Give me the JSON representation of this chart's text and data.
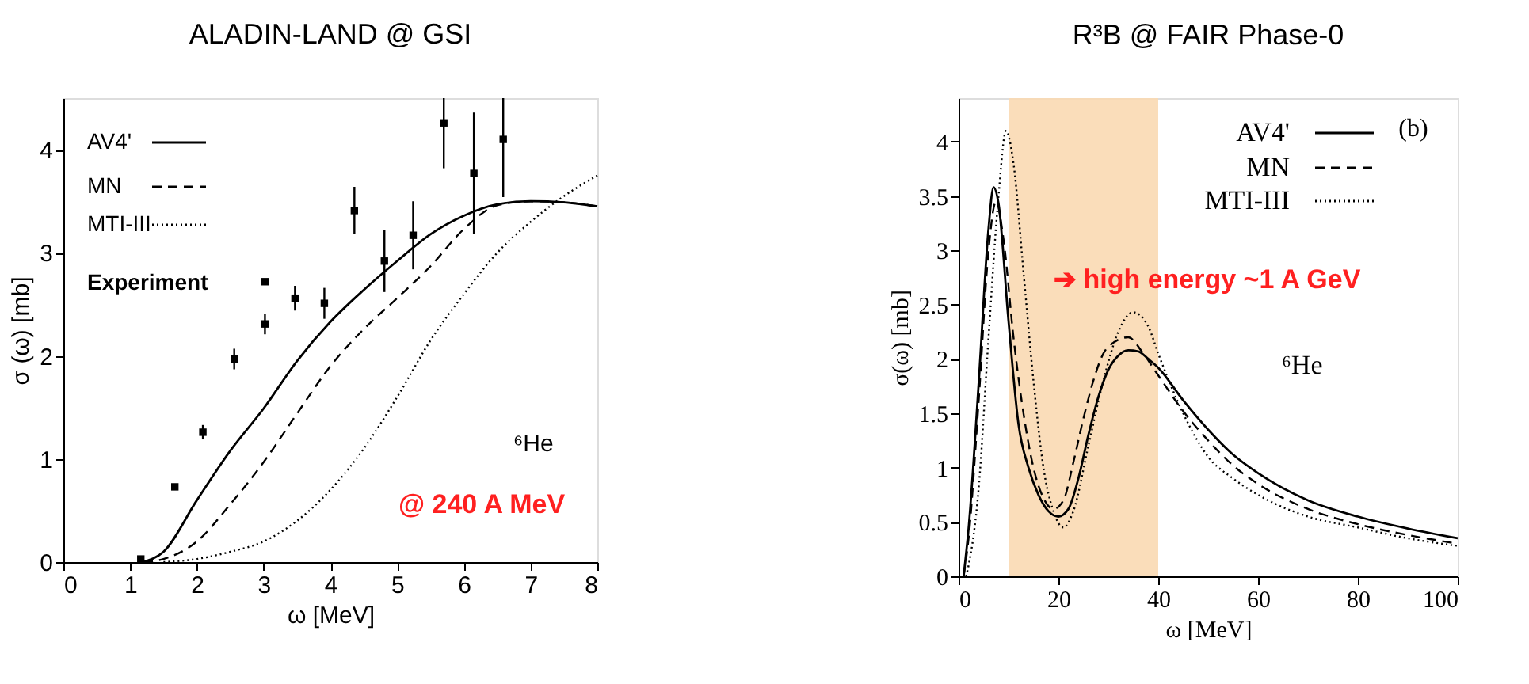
{
  "chart_data": [
    {
      "type": "line",
      "title": "ALADIN-LAND @ GSI",
      "xlabel": "ω  [MeV]",
      "ylabel": "σ (ω) [mb]",
      "xlim": [
        0,
        8
      ],
      "ylim": [
        0,
        4.5
      ],
      "xticks": [
        0,
        1,
        2,
        3,
        4,
        5,
        6,
        7,
        8
      ],
      "yticks": [
        0,
        1,
        2,
        3,
        4
      ],
      "legend": "top left",
      "grid": false,
      "annotations": [
        "⁶He",
        "@ 240 A MeV"
      ],
      "series": [
        {
          "name": "AV4'",
          "color": "#000000",
          "line_style": "solid",
          "x": [
            1.2,
            1.5,
            2,
            2.5,
            3,
            3.5,
            4,
            4.5,
            5,
            5.5,
            6,
            6.5,
            7,
            7.5,
            8
          ],
          "values": [
            0,
            0.1,
            0.6,
            1.08,
            1.49,
            1.95,
            2.33,
            2.64,
            2.92,
            3.18,
            3.36,
            3.47,
            3.5,
            3.49,
            3.45
          ]
        },
        {
          "name": "MN",
          "color": "#000000",
          "line_style": "dashed",
          "x": [
            1.2,
            1.5,
            2,
            2.5,
            3,
            3.5,
            4,
            4.5,
            5,
            5.5,
            6,
            6.5,
            7,
            7.5,
            8
          ],
          "values": [
            0,
            0.03,
            0.2,
            0.56,
            0.97,
            1.44,
            1.9,
            2.26,
            2.56,
            2.87,
            3.23,
            3.46,
            3.5,
            3.49,
            3.45
          ]
        },
        {
          "name": "MTI-III",
          "color": "#000000",
          "line_style": "dotted",
          "x": [
            1.5,
            2,
            2.5,
            3,
            3.5,
            4,
            4.5,
            5,
            5.5,
            6,
            6.5,
            7,
            7.5,
            8
          ],
          "values": [
            0,
            0.03,
            0.1,
            0.2,
            0.4,
            0.7,
            1.1,
            1.6,
            2.15,
            2.6,
            3.0,
            3.3,
            3.55,
            3.75
          ]
        },
        {
          "name": "Experiment",
          "type": "scatter",
          "marker": "square",
          "color": "#000000",
          "x": [
            1.16,
            1.67,
            2.09,
            2.56,
            3.02,
            3.02,
            3.47,
            3.91,
            4.36,
            4.81,
            5.24,
            5.7,
            6.15,
            6.59
          ],
          "values": [
            0.03,
            0.73,
            1.26,
            1.97,
            2.31,
            2.72,
            2.56,
            2.51,
            3.41,
            2.92,
            3.17,
            4.26,
            3.77,
            4.1
          ],
          "errors": [
            null,
            null,
            0.07,
            0.1,
            0.1,
            null,
            0.12,
            0.15,
            0.23,
            0.3,
            0.33,
            [
              3.82,
              4.5
            ],
            [
              3.18,
              4.36
            ],
            [
              3.54,
              4.5
            ]
          ]
        }
      ]
    },
    {
      "type": "line",
      "title": "R³B @ FAIR Phase-0",
      "xlabel": "ω [MeV]",
      "ylabel": "σ(ω) [mb]",
      "xlim": [
        0,
        100
      ],
      "ylim": [
        0,
        4.4
      ],
      "xticks": [
        0,
        20,
        40,
        60,
        80,
        100
      ],
      "yticks": [
        0,
        0.5,
        1,
        1.5,
        2,
        2.5,
        3,
        3.5,
        4
      ],
      "legend": "top right",
      "grid": false,
      "annotations": [
        "(b)",
        "➔ high energy ~1 A GeV",
        "⁶He"
      ],
      "bands": [
        {
          "axis": "x",
          "from": 10,
          "to": 40,
          "color": "#fad9b2"
        }
      ],
      "series": [
        {
          "name": "AV4'",
          "color": "#000000",
          "line_style": "solid",
          "x": [
            1,
            2,
            4,
            6,
            7,
            8,
            10,
            12,
            14,
            16,
            18,
            20,
            22,
            24,
            26,
            28,
            30,
            32,
            34,
            36,
            38,
            40,
            45,
            50,
            55,
            60,
            70,
            80,
            90,
            100
          ],
          "values": [
            0,
            0.44,
            1.76,
            3.2,
            3.58,
            3.43,
            2.35,
            1.4,
            1.0,
            0.75,
            0.6,
            0.55,
            0.62,
            0.9,
            1.3,
            1.65,
            1.9,
            2.03,
            2.08,
            2.07,
            2.0,
            1.92,
            1.62,
            1.35,
            1.12,
            0.95,
            0.7,
            0.55,
            0.44,
            0.35
          ]
        },
        {
          "name": "MN",
          "color": "#000000",
          "line_style": "dashed",
          "x": [
            1,
            2,
            4,
            6,
            7.5,
            9,
            11,
            13,
            15,
            17,
            19,
            21,
            23,
            25,
            27,
            29,
            31,
            34,
            37,
            40,
            45,
            50,
            55,
            60,
            70,
            80,
            90,
            100
          ],
          "values": [
            0,
            0.35,
            1.6,
            3.0,
            3.45,
            3.1,
            2.2,
            1.5,
            1.0,
            0.72,
            0.62,
            0.7,
            1.05,
            1.45,
            1.8,
            2.05,
            2.15,
            2.2,
            2.05,
            1.85,
            1.52,
            1.25,
            1.02,
            0.85,
            0.62,
            0.48,
            0.38,
            0.3
          ]
        },
        {
          "name": "MTI-III",
          "color": "#000000",
          "line_style": "dotted",
          "x": [
            1.5,
            2,
            4,
            6,
            8,
            9.5,
            11,
            13,
            15,
            17,
            19,
            21,
            23,
            26,
            29,
            32,
            35,
            38,
            40,
            45,
            50,
            55,
            60,
            70,
            80,
            90,
            100
          ],
          "values": [
            0,
            0.1,
            0.8,
            2.2,
            3.5,
            4.1,
            3.8,
            2.8,
            1.8,
            1.0,
            0.6,
            0.45,
            0.6,
            1.2,
            1.8,
            2.25,
            2.43,
            2.3,
            2.05,
            1.5,
            1.1,
            0.9,
            0.75,
            0.55,
            0.45,
            0.35,
            0.28
          ]
        }
      ]
    }
  ]
}
